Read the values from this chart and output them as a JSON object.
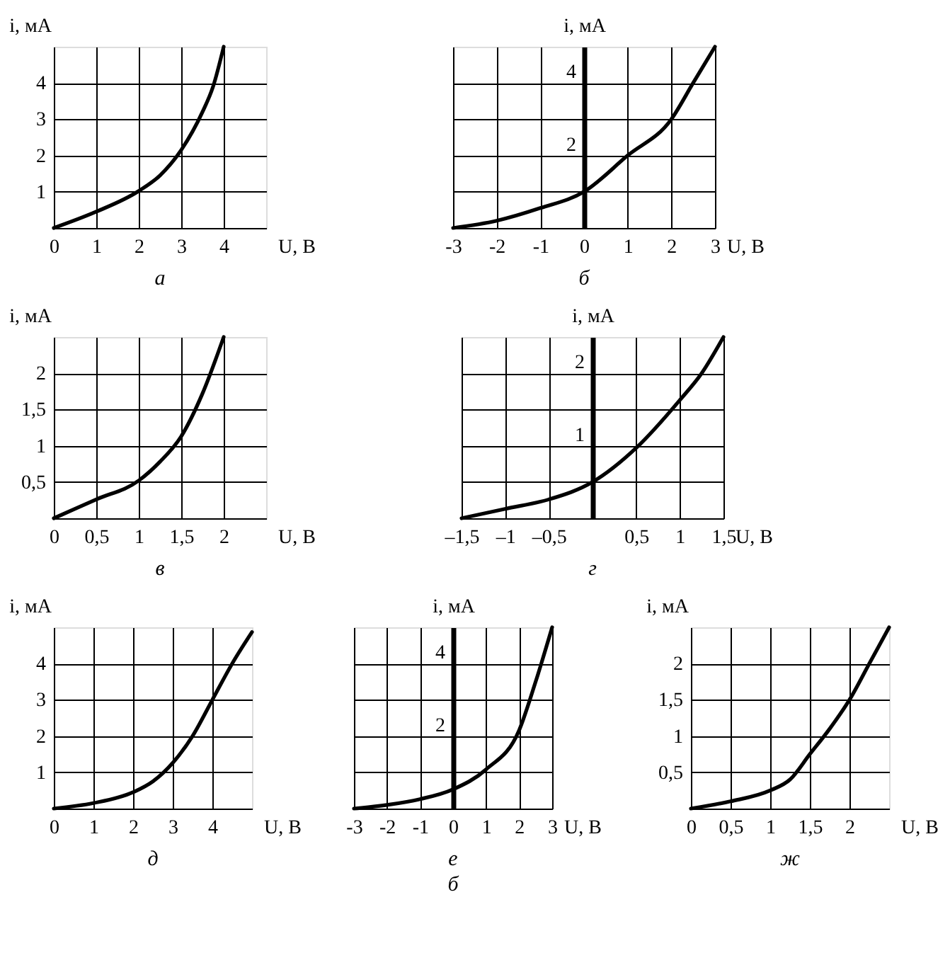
{
  "chart_data": [
    {
      "type": "line",
      "title": "а",
      "xlabel": "U, В",
      "ylabel": "i, мА",
      "xlim": [
        0,
        5
      ],
      "ylim": [
        0,
        5
      ],
      "xticks": [
        0,
        1,
        2,
        3,
        4
      ],
      "yticks": [
        1,
        2,
        3,
        4
      ],
      "grid": true,
      "marker": "none",
      "line_style": "solid",
      "series": [
        {
          "color": "#000000",
          "x": [
            0,
            1,
            2,
            2.5,
            3,
            3.5,
            3.75,
            4
          ],
          "values": [
            0,
            0.45,
            1.02,
            1.45,
            2.15,
            3.2,
            3.9,
            5
          ]
        }
      ]
    },
    {
      "type": "line",
      "title": "б",
      "xlabel": "U, В",
      "ylabel": "i, мА",
      "xlim": [
        -3,
        3
      ],
      "ylim": [
        0,
        5
      ],
      "xticks": [
        -3,
        -2,
        -1,
        0,
        1,
        2,
        3
      ],
      "yticks": [
        {
          "value": 1,
          "label": null
        },
        2,
        {
          "value": 3,
          "label": null
        },
        4
      ],
      "grid": true,
      "marker": "none",
      "line_style": "solid",
      "series": [
        {
          "color": "#000000",
          "x": [
            -3,
            -2,
            -1,
            0,
            1,
            2,
            2.5,
            3
          ],
          "values": [
            0,
            0.2,
            0.55,
            1,
            2,
            3,
            4,
            5
          ]
        }
      ]
    },
    {
      "type": "line",
      "title": "в",
      "xlabel": "U, В",
      "ylabel": "i, мА",
      "xlim": [
        0,
        2.5
      ],
      "ylim": [
        0,
        2.5
      ],
      "xticks": [
        0,
        {
          "value": 0.5,
          "label": "0,5"
        },
        1,
        {
          "value": 1.5,
          "label": "1,5"
        },
        2
      ],
      "yticks": [
        {
          "value": 0.5,
          "label": "0,5"
        },
        1,
        {
          "value": 1.5,
          "label": "1,5"
        },
        2
      ],
      "grid": true,
      "marker": "none",
      "line_style": "solid",
      "series": [
        {
          "color": "#000000",
          "x": [
            0,
            0.5,
            1,
            1.25,
            1.5,
            1.75,
            2
          ],
          "values": [
            0,
            0.26,
            0.52,
            0.78,
            1.13,
            1.72,
            2.5
          ]
        }
      ]
    },
    {
      "type": "line",
      "title": "г",
      "xlabel": "U, В",
      "ylabel": "i, мА",
      "xlim": [
        -1.5,
        1.5
      ],
      "ylim": [
        0,
        2.5
      ],
      "xticks": [
        {
          "value": -1.5,
          "label": "–1,5"
        },
        {
          "value": -1,
          "label": "–1"
        },
        {
          "value": -0.5,
          "label": "–0,5"
        },
        {
          "value": 0,
          "label": null
        },
        {
          "value": 0.5,
          "label": "0,5"
        },
        1,
        {
          "value": 1.5,
          "label": "1,5"
        }
      ],
      "yticks": [
        {
          "value": 0.5,
          "label": null
        },
        1,
        {
          "value": 1.5,
          "label": null
        },
        2
      ],
      "grid": true,
      "marker": "none",
      "line_style": "solid",
      "series": [
        {
          "color": "#000000",
          "x": [
            -1.5,
            -1,
            -0.5,
            0,
            0.5,
            1,
            1.25,
            1.5
          ],
          "values": [
            0,
            0.13,
            0.26,
            0.5,
            0.97,
            1.63,
            2,
            2.5
          ]
        }
      ]
    },
    {
      "type": "line",
      "title": "д",
      "xlabel": "U, В",
      "ylabel": "i, мА",
      "xlim": [
        0,
        5
      ],
      "ylim": [
        0,
        5
      ],
      "xticks": [
        0,
        1,
        2,
        3,
        4
      ],
      "yticks": [
        1,
        2,
        3,
        4
      ],
      "grid": true,
      "marker": "none",
      "line_style": "solid",
      "series": [
        {
          "color": "#000000",
          "x": [
            0,
            1,
            2,
            2.5,
            3,
            3.5,
            4,
            4.5,
            5
          ],
          "values": [
            0,
            0.15,
            0.45,
            0.75,
            1.26,
            2,
            3,
            4,
            4.87
          ]
        }
      ]
    },
    {
      "type": "line",
      "title": "е",
      "subtitle": "б",
      "xlabel": "U, В",
      "ylabel": "i, мА",
      "xlim": [
        -3,
        3
      ],
      "ylim": [
        0,
        5
      ],
      "xticks": [
        -3,
        -2,
        -1,
        0,
        1,
        2,
        3
      ],
      "yticks": [
        {
          "value": 1,
          "label": null
        },
        2,
        {
          "value": 3,
          "label": null
        },
        4
      ],
      "grid": true,
      "marker": "none",
      "line_style": "solid",
      "series": [
        {
          "color": "#000000",
          "x": [
            -3,
            -2,
            -1,
            0,
            1,
            2,
            2.5,
            3
          ],
          "values": [
            0,
            0.1,
            0.26,
            0.53,
            1.08,
            2.16,
            3.5,
            5
          ]
        }
      ]
    },
    {
      "type": "line",
      "title": "ж",
      "xlabel": "U, В",
      "ylabel": "i, мА",
      "xlim": [
        0,
        2.5
      ],
      "ylim": [
        0,
        2.5
      ],
      "xticks": [
        0,
        {
          "value": 0.5,
          "label": "0,5"
        },
        1,
        {
          "value": 1.5,
          "label": "1,5"
        },
        2
      ],
      "yticks": [
        {
          "value": 0.5,
          "label": "0,5"
        },
        1,
        {
          "value": 1.5,
          "label": "1,5"
        },
        2
      ],
      "grid": true,
      "marker": "none",
      "line_style": "solid",
      "series": [
        {
          "color": "#000000",
          "x": [
            0,
            0.5,
            1,
            1.25,
            1.5,
            1.75,
            2,
            2.25,
            2.5
          ],
          "values": [
            0,
            0.1,
            0.25,
            0.4,
            0.75,
            1.1,
            1.5,
            2,
            2.5
          ]
        }
      ]
    }
  ]
}
